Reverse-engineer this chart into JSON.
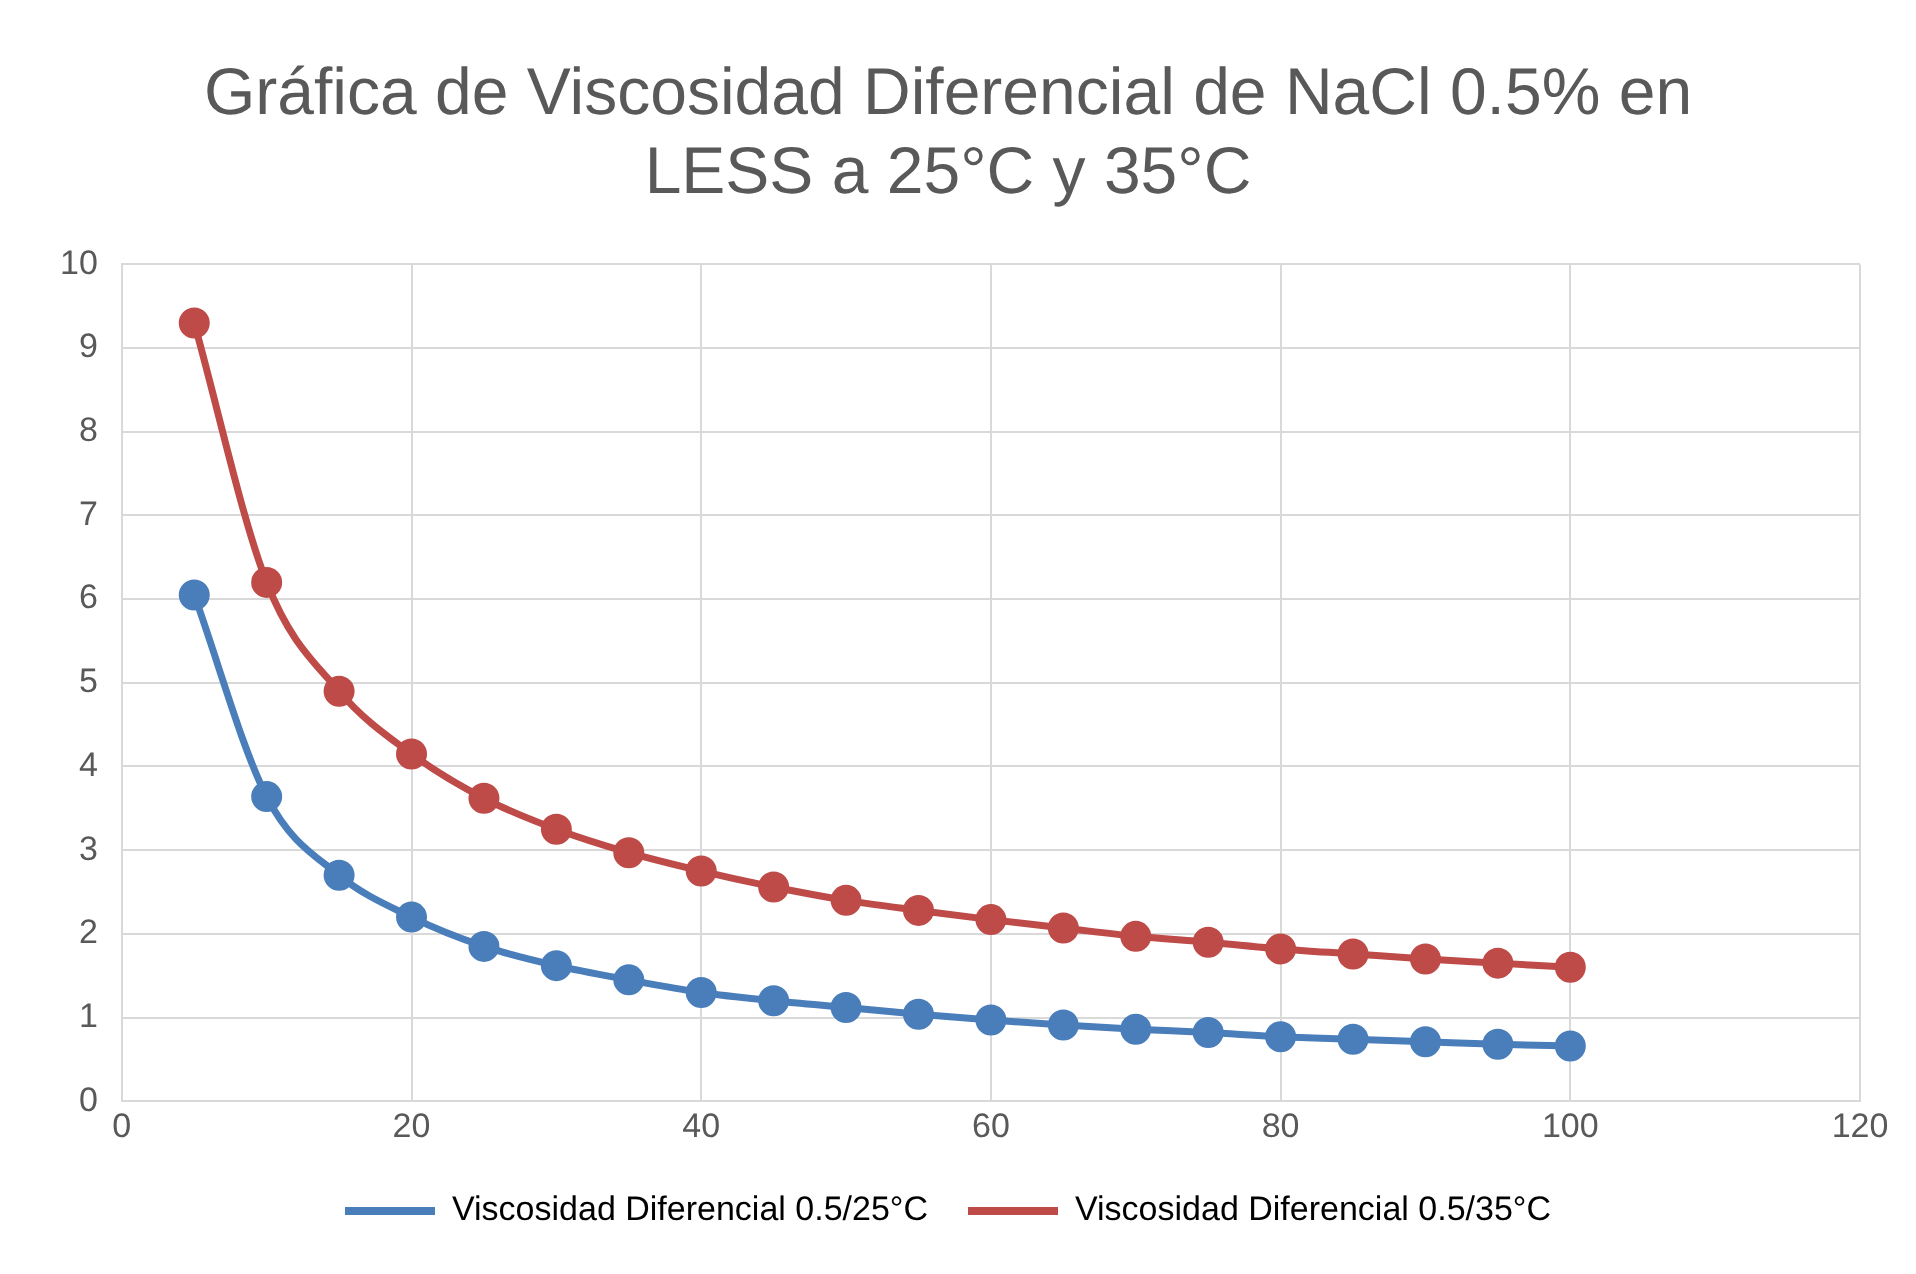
{
  "chart_data": {
    "type": "line",
    "title": "Gráfica de Viscosidad Diferencial de NaCl 0.5% en LESS a 25°C y 35°C",
    "x": [
      5,
      10,
      15,
      20,
      25,
      30,
      35,
      40,
      45,
      50,
      55,
      60,
      65,
      70,
      75,
      80,
      85,
      90,
      95,
      100
    ],
    "series": [
      {
        "name": "Viscosidad Diferencial 0.5/25°C",
        "color": "#4a7ebb",
        "values": [
          6.05,
          3.64,
          2.7,
          2.2,
          1.85,
          1.62,
          1.45,
          1.3,
          1.2,
          1.12,
          1.04,
          0.97,
          0.91,
          0.86,
          0.82,
          0.77,
          0.74,
          0.71,
          0.68,
          0.66
        ]
      },
      {
        "name": "Viscosidad Diferencial 0.5/35°C",
        "color": "#be4b48",
        "values": [
          9.3,
          6.2,
          4.9,
          4.15,
          3.62,
          3.25,
          2.97,
          2.75,
          2.56,
          2.4,
          2.28,
          2.17,
          2.07,
          1.97,
          1.9,
          1.82,
          1.76,
          1.7,
          1.65,
          1.6
        ]
      }
    ],
    "xlim": [
      0,
      120
    ],
    "xticks": [
      0,
      20,
      40,
      60,
      80,
      100,
      120
    ],
    "ylim": [
      0,
      10
    ],
    "yticks": [
      0,
      1,
      2,
      3,
      4,
      5,
      6,
      7,
      8,
      9,
      10
    ],
    "grid": true,
    "legend": "bottom",
    "marker": "circle",
    "line_style": "solid"
  }
}
